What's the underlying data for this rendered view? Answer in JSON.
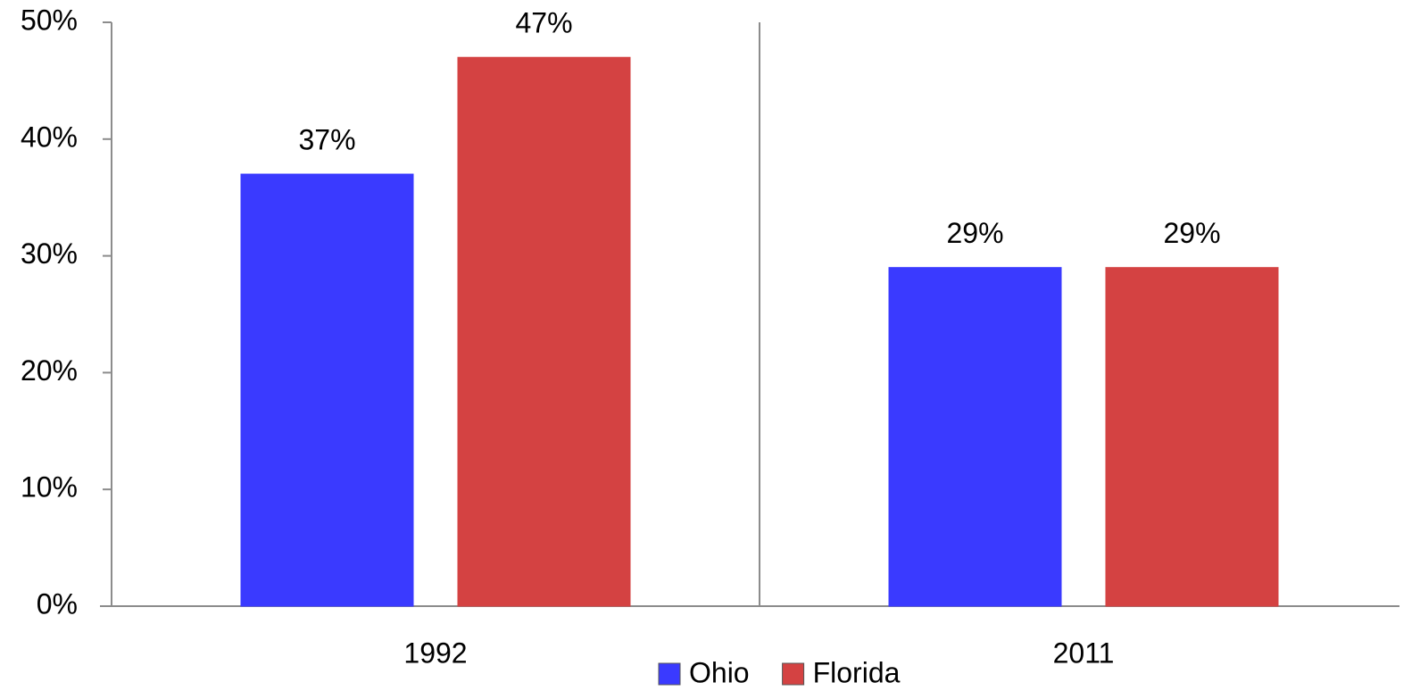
{
  "chart_data": {
    "type": "bar",
    "categories": [
      "1992",
      "2011"
    ],
    "series": [
      {
        "name": "Ohio",
        "color": "#3a3aff",
        "values": [
          37,
          29
        ],
        "value_labels": [
          "37%",
          "29%"
        ]
      },
      {
        "name": "Florida",
        "color": "#d44242",
        "values": [
          47,
          29
        ],
        "value_labels": [
          "47%",
          "29%"
        ]
      }
    ],
    "ylim": [
      0,
      50
    ],
    "yticks": [
      {
        "value": 0,
        "label": "0%"
      },
      {
        "value": 10,
        "label": "10%"
      },
      {
        "value": 20,
        "label": "20%"
      },
      {
        "value": 30,
        "label": "30%"
      },
      {
        "value": 40,
        "label": "40%"
      },
      {
        "value": 50,
        "label": "50%"
      }
    ],
    "legend": "bottom"
  }
}
